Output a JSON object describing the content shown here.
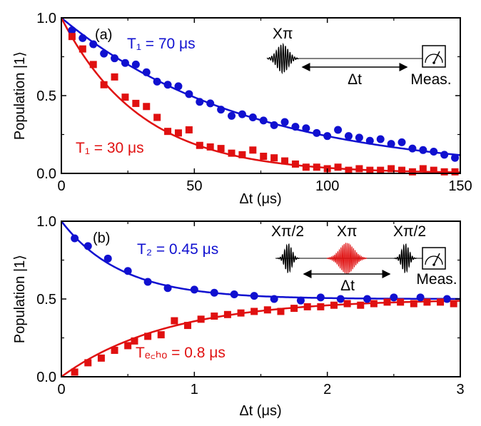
{
  "chart_data": [
    {
      "type": "scatter",
      "panel_label": "(a)",
      "xlabel": "Δt (μs)",
      "ylabel": "Population |1⟩",
      "xlim": [
        0,
        150
      ],
      "ylim": [
        0,
        1
      ],
      "x_ticks": [
        "0",
        "50",
        "100",
        "150"
      ],
      "y_ticks": [
        "0.0",
        "0.5",
        "1.0"
      ],
      "colors": {
        "blue": "#1010d0",
        "red": "#e01010"
      },
      "series": [
        {
          "color": "blue",
          "marker": "circle",
          "x": [
            4,
            8,
            12,
            16,
            20,
            24,
            28,
            32,
            36,
            40,
            44,
            48,
            52,
            56,
            60,
            64,
            68,
            72,
            76,
            80,
            84,
            88,
            92,
            96,
            100,
            104,
            108,
            112,
            116,
            120,
            124,
            128,
            132,
            136,
            140,
            144,
            148
          ],
          "y": [
            0.92,
            0.87,
            0.83,
            0.77,
            0.74,
            0.71,
            0.7,
            0.65,
            0.59,
            0.57,
            0.56,
            0.51,
            0.46,
            0.45,
            0.41,
            0.37,
            0.38,
            0.36,
            0.34,
            0.31,
            0.33,
            0.3,
            0.29,
            0.26,
            0.24,
            0.28,
            0.24,
            0.23,
            0.21,
            0.22,
            0.19,
            0.2,
            0.16,
            0.15,
            0.14,
            0.12,
            0.1
          ]
        },
        {
          "color": "red",
          "marker": "square",
          "x": [
            4,
            8,
            12,
            16,
            20,
            24,
            28,
            32,
            36,
            40,
            44,
            48,
            52,
            56,
            60,
            64,
            68,
            72,
            76,
            80,
            84,
            88,
            92,
            96,
            100,
            104,
            108,
            112,
            116,
            120,
            124,
            128,
            132,
            136,
            140,
            144,
            148
          ],
          "y": [
            0.88,
            0.8,
            0.7,
            0.57,
            0.62,
            0.49,
            0.45,
            0.43,
            0.36,
            0.27,
            0.26,
            0.28,
            0.18,
            0.17,
            0.16,
            0.13,
            0.12,
            0.15,
            0.11,
            0.1,
            0.08,
            0.06,
            0.04,
            0.04,
            0.03,
            0.04,
            0.02,
            0.03,
            0.02,
            0.02,
            0.03,
            0.02,
            0.01,
            0.03,
            0.02,
            0.01,
            0.01
          ]
        }
      ],
      "fits": [
        {
          "color": "blue",
          "model": "exp_decay",
          "T": 70
        },
        {
          "color": "red",
          "model": "exp_decay",
          "T": 30
        }
      ],
      "annotations": {
        "blue_label": "T₁ = 70 μs",
        "red_label": "T₁ = 30 μs",
        "pulse": "Xπ",
        "delay": "Δt",
        "meas": "Meas."
      }
    },
    {
      "type": "scatter",
      "panel_label": "(b)",
      "xlabel": "Δt (μs)",
      "ylabel": "Population |1⟩",
      "xlim": [
        0,
        3
      ],
      "ylim": [
        0,
        1
      ],
      "x_ticks": [
        "0",
        "1",
        "2",
        "3"
      ],
      "y_ticks": [
        "0.0",
        "0.5",
        "1.0"
      ],
      "colors": {
        "blue": "#1010d0",
        "red": "#e01010"
      },
      "series": [
        {
          "color": "blue",
          "marker": "circle",
          "x": [
            0.1,
            0.2,
            0.35,
            0.5,
            0.65,
            0.8,
            1.0,
            1.15,
            1.3,
            1.45,
            1.6,
            1.8,
            1.95,
            2.1,
            2.3,
            2.5,
            2.7,
            2.9
          ],
          "y": [
            0.89,
            0.84,
            0.76,
            0.68,
            0.61,
            0.57,
            0.56,
            0.54,
            0.53,
            0.52,
            0.5,
            0.49,
            0.51,
            0.5,
            0.5,
            0.51,
            0.51,
            0.5
          ]
        },
        {
          "color": "red",
          "marker": "square",
          "x": [
            0.1,
            0.2,
            0.3,
            0.4,
            0.5,
            0.55,
            0.65,
            0.75,
            0.85,
            0.95,
            1.05,
            1.15,
            1.25,
            1.35,
            1.45,
            1.55,
            1.65,
            1.75,
            1.85,
            1.95,
            2.05,
            2.15,
            2.25,
            2.35,
            2.45,
            2.55,
            2.65,
            2.75,
            2.85,
            2.95
          ],
          "y": [
            0.03,
            0.09,
            0.12,
            0.17,
            0.2,
            0.23,
            0.26,
            0.27,
            0.36,
            0.33,
            0.37,
            0.39,
            0.4,
            0.41,
            0.42,
            0.43,
            0.42,
            0.44,
            0.45,
            0.45,
            0.46,
            0.47,
            0.46,
            0.47,
            0.48,
            0.48,
            0.47,
            0.48,
            0.48,
            0.47
          ]
        }
      ],
      "fits": [
        {
          "color": "blue",
          "model": "decay_to_half",
          "T": 0.45
        },
        {
          "color": "red",
          "model": "rise_to_half",
          "T": 0.8
        }
      ],
      "annotations": {
        "blue_label": "T₂ = 0.45 μs",
        "red_label": "Tₑ꜀ₕₒ = 0.8 μs",
        "pulse_half": "Xπ/2",
        "pulse": "Xπ",
        "delay": "Δt",
        "meas": "Meas."
      }
    }
  ]
}
